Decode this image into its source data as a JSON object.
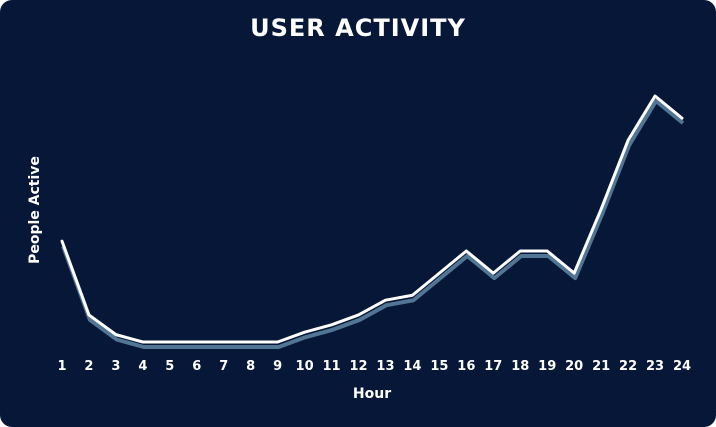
{
  "chart_data": {
    "type": "line",
    "title": "USER ACTIVITY",
    "xlabel": "Hour",
    "ylabel": "People Active",
    "x": [
      1,
      2,
      3,
      4,
      5,
      6,
      7,
      8,
      9,
      10,
      11,
      12,
      13,
      14,
      15,
      16,
      17,
      18,
      19,
      20,
      21,
      22,
      23,
      24
    ],
    "categories": [
      "1",
      "2",
      "3",
      "4",
      "5",
      "6",
      "7",
      "8",
      "9",
      "10",
      "11",
      "12",
      "13",
      "14",
      "15",
      "16",
      "17",
      "18",
      "19",
      "20",
      "21",
      "22",
      "23",
      "24"
    ],
    "values": [
      41,
      11,
      3,
      0,
      0,
      0,
      0,
      0,
      0,
      4,
      7,
      11,
      17,
      19,
      28,
      37,
      28,
      37,
      37,
      28,
      54,
      82,
      100,
      91
    ],
    "ylim": [
      0,
      110
    ],
    "grid": false,
    "legend": "none"
  },
  "colors": {
    "background": "#061737",
    "line": "#ffffff",
    "shadow": "#5a7f9f",
    "text": "#ffffff"
  }
}
